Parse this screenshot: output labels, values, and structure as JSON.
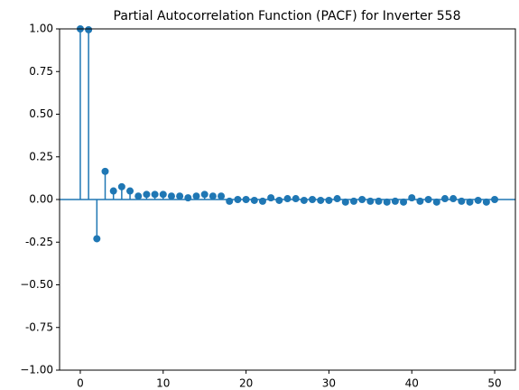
{
  "chart_data": {
    "type": "stem",
    "title": "Partial Autocorrelation Function (PACF) for Inverter 558",
    "color": "#1f77b4",
    "x": [
      0,
      1,
      2,
      3,
      4,
      5,
      6,
      7,
      8,
      9,
      10,
      11,
      12,
      13,
      14,
      15,
      16,
      17,
      18,
      19,
      20,
      21,
      22,
      23,
      24,
      25,
      26,
      27,
      28,
      29,
      30,
      31,
      32,
      33,
      34,
      35,
      36,
      37,
      38,
      39,
      40,
      41,
      42,
      43,
      44,
      45,
      46,
      47,
      48,
      49,
      50
    ],
    "values": [
      1.0,
      0.995,
      -0.23,
      0.165,
      0.05,
      0.075,
      0.05,
      0.02,
      0.03,
      0.03,
      0.03,
      0.02,
      0.02,
      0.01,
      0.02,
      0.03,
      0.02,
      0.02,
      -0.01,
      0.0,
      0.0,
      -0.005,
      -0.01,
      0.01,
      -0.005,
      0.005,
      0.005,
      -0.005,
      0.0,
      -0.005,
      -0.005,
      0.005,
      -0.015,
      -0.01,
      0.0,
      -0.01,
      -0.01,
      -0.015,
      -0.01,
      -0.015,
      0.01,
      -0.01,
      0.0,
      -0.015,
      0.005,
      0.005,
      -0.01,
      -0.015,
      -0.005,
      -0.015,
      0.0
    ],
    "xlim": [
      -2.5,
      52.5
    ],
    "ylim": [
      -1.0,
      1.0
    ],
    "xticks": [
      0,
      10,
      20,
      30,
      40,
      50
    ],
    "yticks": [
      {
        "value": -1.0,
        "label": "−1.00"
      },
      -0.75,
      {
        "value": -0.5,
        "label": "−0.50"
      },
      -0.25,
      {
        "value": 0.0,
        "label": "0.00"
      },
      0.25,
      {
        "value": 0.5,
        "label": "0.50"
      },
      0.75,
      {
        "value": 1.0,
        "label": "1.00"
      }
    ]
  }
}
